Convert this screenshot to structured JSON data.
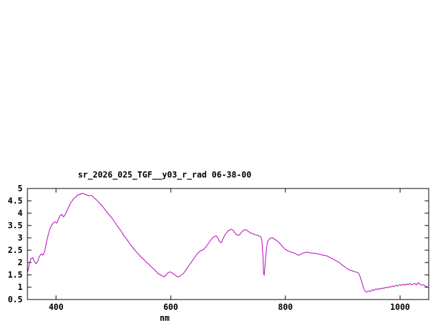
{
  "window": {
    "background": "#ffffff"
  },
  "chart_data": {
    "type": "line",
    "title": "sr_2026_025_TGF__y03_r_rad 06-38-00",
    "xlabel": "nm",
    "ylabel": "",
    "xlim": [
      350,
      1050
    ],
    "ylim": [
      0.5,
      5
    ],
    "xticks": [
      400,
      600,
      800,
      1000
    ],
    "yticks": [
      0.5,
      1,
      1.5,
      2,
      2.5,
      3,
      3.5,
      4,
      4.5,
      5
    ],
    "grid": false,
    "legend": "none",
    "colors": {
      "line": "#b400b4",
      "axis": "#000000",
      "text": "#000000",
      "background": "#ffffff"
    },
    "points": [
      [
        350,
        1.55
      ],
      [
        353,
        1.9
      ],
      [
        356,
        2.15
      ],
      [
        359,
        2.2
      ],
      [
        362,
        2.05
      ],
      [
        365,
        1.95
      ],
      [
        368,
        2.05
      ],
      [
        371,
        2.25
      ],
      [
        374,
        2.35
      ],
      [
        377,
        2.3
      ],
      [
        380,
        2.45
      ],
      [
        383,
        2.8
      ],
      [
        386,
        3.1
      ],
      [
        389,
        3.35
      ],
      [
        392,
        3.5
      ],
      [
        395,
        3.6
      ],
      [
        398,
        3.65
      ],
      [
        401,
        3.6
      ],
      [
        404,
        3.75
      ],
      [
        407,
        3.9
      ],
      [
        410,
        3.95
      ],
      [
        413,
        3.85
      ],
      [
        416,
        3.95
      ],
      [
        419,
        4.1
      ],
      [
        422,
        4.25
      ],
      [
        425,
        4.4
      ],
      [
        428,
        4.5
      ],
      [
        431,
        4.6
      ],
      [
        434,
        4.65
      ],
      [
        437,
        4.72
      ],
      [
        440,
        4.75
      ],
      [
        443,
        4.78
      ],
      [
        446,
        4.8
      ],
      [
        449,
        4.78
      ],
      [
        452,
        4.75
      ],
      [
        455,
        4.72
      ],
      [
        458,
        4.7
      ],
      [
        461,
        4.72
      ],
      [
        464,
        4.68
      ],
      [
        467,
        4.6
      ],
      [
        470,
        4.55
      ],
      [
        474,
        4.45
      ],
      [
        478,
        4.35
      ],
      [
        482,
        4.25
      ],
      [
        486,
        4.12
      ],
      [
        490,
        4.0
      ],
      [
        494,
        3.9
      ],
      [
        498,
        3.78
      ],
      [
        502,
        3.65
      ],
      [
        506,
        3.5
      ],
      [
        510,
        3.38
      ],
      [
        514,
        3.25
      ],
      [
        518,
        3.1
      ],
      [
        522,
        2.98
      ],
      [
        526,
        2.85
      ],
      [
        530,
        2.72
      ],
      [
        534,
        2.6
      ],
      [
        538,
        2.48
      ],
      [
        542,
        2.38
      ],
      [
        546,
        2.28
      ],
      [
        550,
        2.18
      ],
      [
        554,
        2.1
      ],
      [
        558,
        2.0
      ],
      [
        562,
        1.92
      ],
      [
        566,
        1.82
      ],
      [
        570,
        1.75
      ],
      [
        574,
        1.65
      ],
      [
        578,
        1.55
      ],
      [
        582,
        1.5
      ],
      [
        586,
        1.45
      ],
      [
        589,
        1.42
      ],
      [
        592,
        1.5
      ],
      [
        595,
        1.58
      ],
      [
        598,
        1.62
      ],
      [
        601,
        1.6
      ],
      [
        604,
        1.55
      ],
      [
        607,
        1.5
      ],
      [
        610,
        1.45
      ],
      [
        613,
        1.42
      ],
      [
        616,
        1.45
      ],
      [
        619,
        1.5
      ],
      [
        622,
        1.55
      ],
      [
        625,
        1.65
      ],
      [
        628,
        1.75
      ],
      [
        631,
        1.85
      ],
      [
        634,
        1.95
      ],
      [
        637,
        2.05
      ],
      [
        640,
        2.15
      ],
      [
        643,
        2.25
      ],
      [
        646,
        2.35
      ],
      [
        649,
        2.42
      ],
      [
        652,
        2.48
      ],
      [
        655,
        2.5
      ],
      [
        658,
        2.55
      ],
      [
        661,
        2.62
      ],
      [
        664,
        2.72
      ],
      [
        667,
        2.82
      ],
      [
        670,
        2.92
      ],
      [
        673,
        3.0
      ],
      [
        676,
        3.05
      ],
      [
        679,
        3.08
      ],
      [
        682,
        3.0
      ],
      [
        685,
        2.85
      ],
      [
        688,
        2.8
      ],
      [
        691,
        2.95
      ],
      [
        694,
        3.1
      ],
      [
        697,
        3.2
      ],
      [
        700,
        3.28
      ],
      [
        703,
        3.32
      ],
      [
        706,
        3.35
      ],
      [
        709,
        3.3
      ],
      [
        712,
        3.2
      ],
      [
        715,
        3.12
      ],
      [
        718,
        3.1
      ],
      [
        721,
        3.15
      ],
      [
        724,
        3.25
      ],
      [
        727,
        3.3
      ],
      [
        730,
        3.33
      ],
      [
        733,
        3.3
      ],
      [
        736,
        3.25
      ],
      [
        739,
        3.2
      ],
      [
        742,
        3.18
      ],
      [
        745,
        3.15
      ],
      [
        748,
        3.12
      ],
      [
        751,
        3.1
      ],
      [
        754,
        3.08
      ],
      [
        757,
        3.05
      ],
      [
        759,
        2.9
      ],
      [
        761,
        2.2
      ],
      [
        762,
        1.55
      ],
      [
        763,
        1.5
      ],
      [
        765,
        2.0
      ],
      [
        767,
        2.6
      ],
      [
        769,
        2.85
      ],
      [
        772,
        2.95
      ],
      [
        775,
        3.0
      ],
      [
        778,
        3.0
      ],
      [
        781,
        2.95
      ],
      [
        784,
        2.9
      ],
      [
        787,
        2.85
      ],
      [
        790,
        2.78
      ],
      [
        793,
        2.7
      ],
      [
        796,
        2.62
      ],
      [
        799,
        2.55
      ],
      [
        802,
        2.5
      ],
      [
        806,
        2.46
      ],
      [
        810,
        2.42
      ],
      [
        814,
        2.4
      ],
      [
        818,
        2.35
      ],
      [
        822,
        2.3
      ],
      [
        826,
        2.32
      ],
      [
        830,
        2.38
      ],
      [
        834,
        2.4
      ],
      [
        838,
        2.42
      ],
      [
        842,
        2.4
      ],
      [
        846,
        2.38
      ],
      [
        850,
        2.38
      ],
      [
        854,
        2.36
      ],
      [
        858,
        2.34
      ],
      [
        862,
        2.32
      ],
      [
        866,
        2.3
      ],
      [
        870,
        2.28
      ],
      [
        874,
        2.25
      ],
      [
        878,
        2.2
      ],
      [
        882,
        2.15
      ],
      [
        886,
        2.1
      ],
      [
        890,
        2.05
      ],
      [
        894,
        2.0
      ],
      [
        898,
        1.92
      ],
      [
        902,
        1.85
      ],
      [
        906,
        1.78
      ],
      [
        910,
        1.72
      ],
      [
        914,
        1.68
      ],
      [
        918,
        1.65
      ],
      [
        922,
        1.62
      ],
      [
        926,
        1.6
      ],
      [
        928,
        1.55
      ],
      [
        930,
        1.45
      ],
      [
        932,
        1.3
      ],
      [
        934,
        1.15
      ],
      [
        936,
        1.0
      ],
      [
        938,
        0.88
      ],
      [
        940,
        0.82
      ],
      [
        942,
        0.8
      ],
      [
        944,
        0.83
      ],
      [
        946,
        0.85
      ],
      [
        948,
        0.82
      ],
      [
        950,
        0.87
      ],
      [
        952,
        0.9
      ],
      [
        954,
        0.86
      ],
      [
        956,
        0.9
      ],
      [
        958,
        0.93
      ],
      [
        960,
        0.9
      ],
      [
        963,
        0.95
      ],
      [
        966,
        0.92
      ],
      [
        969,
        0.97
      ],
      [
        972,
        0.95
      ],
      [
        975,
        1.0
      ],
      [
        978,
        0.97
      ],
      [
        981,
        1.02
      ],
      [
        984,
        1.0
      ],
      [
        987,
        1.05
      ],
      [
        990,
        1.02
      ],
      [
        993,
        1.08
      ],
      [
        996,
        1.05
      ],
      [
        999,
        1.1
      ],
      [
        1002,
        1.07
      ],
      [
        1005,
        1.12
      ],
      [
        1008,
        1.08
      ],
      [
        1011,
        1.13
      ],
      [
        1014,
        1.1
      ],
      [
        1017,
        1.15
      ],
      [
        1020,
        1.1
      ],
      [
        1023,
        1.12
      ],
      [
        1026,
        1.15
      ],
      [
        1029,
        1.1
      ],
      [
        1032,
        1.18
      ],
      [
        1035,
        1.12
      ],
      [
        1038,
        1.08
      ],
      [
        1041,
        1.1
      ],
      [
        1044,
        1.05
      ],
      [
        1047,
        1.02
      ],
      [
        1050,
        1.0
      ]
    ]
  }
}
